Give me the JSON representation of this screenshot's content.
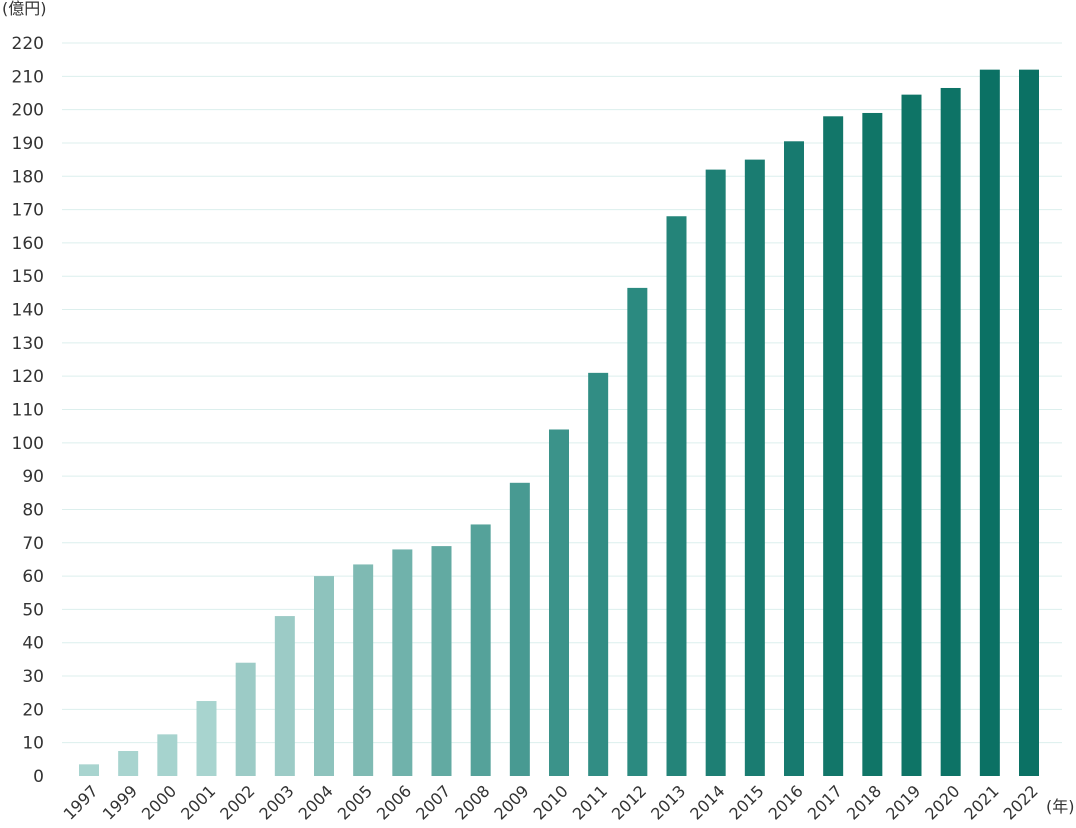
{
  "chart_data": {
    "type": "bar",
    "ylabel": "(億円)",
    "xlabel": "(年)",
    "ylim": [
      0,
      220
    ],
    "y_ticks": [
      "0",
      "10",
      "20",
      "30",
      "40",
      "50",
      "60",
      "70",
      "80",
      "90",
      "100",
      "110",
      "120",
      "130",
      "140",
      "150",
      "160",
      "170",
      "180",
      "190",
      "200",
      "210",
      "220"
    ],
    "grid": true,
    "categories": [
      "1997",
      "1999",
      "2000",
      "2001",
      "2002",
      "2003",
      "2004",
      "2005",
      "2006",
      "2007",
      "2008",
      "2009",
      "2010",
      "2011",
      "2012",
      "2013",
      "2014",
      "2015",
      "2016",
      "2017",
      "2018",
      "2019",
      "2020",
      "2021",
      "2022"
    ],
    "values": [
      3.5,
      7.5,
      12.5,
      22.5,
      34,
      48,
      60,
      63.5,
      68,
      69,
      75.5,
      88,
      104,
      121,
      146.5,
      168,
      182,
      185,
      190.5,
      198,
      199,
      204.5,
      206.5,
      212,
      212
    ],
    "colors": [
      "#a8d4cf",
      "#a8d4cf",
      "#a6d3ce",
      "#a8d4cf",
      "#9ccbc6",
      "#9ccbc6",
      "#8ec3bd",
      "#7fbab3",
      "#70b2ab",
      "#62aaa2",
      "#55a29a",
      "#489a92",
      "#3b938a",
      "#318d84",
      "#2b8a80",
      "#248479",
      "#1e7f74",
      "#1a7c71",
      "#177a6f",
      "#127669",
      "#107567",
      "#0e7466",
      "#0d7366",
      "#0b7164",
      "#0b7164"
    ]
  }
}
